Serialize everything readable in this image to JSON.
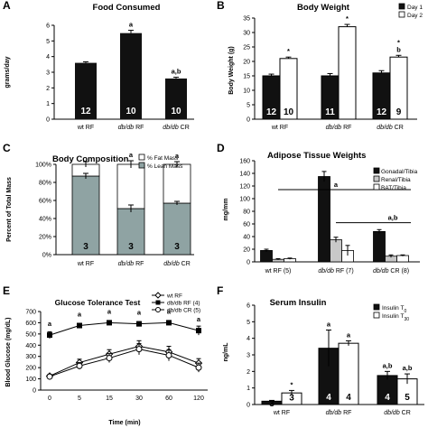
{
  "colors": {
    "black": "#111111",
    "white": "#ffffff",
    "gray": "#8fa3a3",
    "light_gray": "#c8c8c8"
  },
  "chart_data": [
    {
      "id": "A",
      "panel_label": "A",
      "type": "bar",
      "title": "Food Consumed",
      "ylabel": "grams/day",
      "ylim": [
        0,
        6
      ],
      "yticks": [
        "0",
        "1",
        "2",
        "3",
        "4",
        "5",
        "6"
      ],
      "categories": [
        "wt RF",
        "db/db RF",
        "db/db CR"
      ],
      "values": [
        3.6,
        5.5,
        2.6
      ],
      "errors": [
        0.07,
        0.18,
        0.08
      ],
      "n_labels": [
        "12",
        "10",
        "10"
      ],
      "annotations": [
        "",
        "a",
        "a,b"
      ]
    },
    {
      "id": "B",
      "panel_label": "B",
      "type": "bar",
      "title": "Body Weight",
      "ylabel": "Body Weight (g)",
      "ylim": [
        0,
        35
      ],
      "yticks": [
        "0",
        "5",
        "10",
        "15",
        "20",
        "25",
        "30",
        "35"
      ],
      "categories": [
        "wt RF",
        "db/db RF",
        "db/db CR"
      ],
      "series": [
        {
          "name": "Day 1",
          "values": [
            15,
            15,
            16
          ],
          "errors": [
            0.6,
            0.8,
            0.8
          ],
          "n_labels": [
            "12",
            "11",
            "12"
          ],
          "annotations": [
            "",
            "",
            ""
          ]
        },
        {
          "name": "Day 2",
          "values": [
            21,
            32,
            21.5
          ],
          "errors": [
            0.5,
            0.8,
            0.6
          ],
          "n_labels": [
            "10",
            "",
            "9"
          ],
          "annotations": [
            "*",
            "*",
            "*\nb"
          ]
        }
      ],
      "legend": "top-right"
    },
    {
      "id": "C",
      "panel_label": "C",
      "type": "bar",
      "title": "Body Composition",
      "ylabel": "Percent of Total Mass",
      "ylim": [
        0,
        100
      ],
      "yticks": [
        "0%",
        "20%",
        "40%",
        "60%",
        "80%",
        "100%"
      ],
      "categories": [
        "wt RF",
        "db/db RF",
        "db/db CR"
      ],
      "stacked": true,
      "series": [
        {
          "name": "% Lean Mass",
          "values": [
            87,
            51,
            57
          ],
          "errors": [
            3,
            4,
            2
          ]
        },
        {
          "name": "% Fat Mass",
          "values": [
            13,
            49,
            43
          ],
          "errors": [
            3,
            4,
            3
          ]
        }
      ],
      "n_labels": [
        "3",
        "3",
        "3"
      ],
      "annotations": [
        "",
        "a",
        "a"
      ],
      "legend": "top"
    },
    {
      "id": "D",
      "panel_label": "D",
      "type": "bar",
      "title": "Adipose Tissue Weights",
      "ylabel": "mg/mm",
      "ylim": [
        0,
        160
      ],
      "yticks": [
        "0",
        "20",
        "40",
        "60",
        "80",
        "100",
        "120",
        "140",
        "160"
      ],
      "categories": [
        "wt RF (5)",
        "db/db RF (7)",
        "db/db CR (8)"
      ],
      "series": [
        {
          "name": "Gonadal/Tibia",
          "values": [
            18,
            135,
            48
          ],
          "errors": [
            2,
            8,
            3
          ]
        },
        {
          "name": "Renal/Tibia",
          "values": [
            4,
            35,
            9
          ],
          "errors": [
            1,
            4,
            2
          ]
        },
        {
          "name": "BAT/Tibia",
          "values": [
            5,
            18,
            10
          ],
          "errors": [
            1,
            8,
            1
          ]
        }
      ],
      "annotations": [
        "a",
        "a,b"
      ],
      "legend": "top-right"
    },
    {
      "id": "E",
      "panel_label": "E",
      "type": "line",
      "title": "Glucose Tolerance Test",
      "xlabel": "Time (min)",
      "ylabel": "Blood Glucose (mg/dL)",
      "ylim": [
        0,
        700
      ],
      "yticks": [
        "0",
        "100",
        "200",
        "300",
        "400",
        "500",
        "600",
        "700"
      ],
      "x": [
        "0",
        "5",
        "15",
        "30",
        "60",
        "120"
      ],
      "series": [
        {
          "name": "wt RF",
          "marker": "diamond",
          "values": [
            125,
            245,
            320,
            390,
            340,
            240
          ],
          "errors": [
            15,
            30,
            40,
            50,
            50,
            40
          ]
        },
        {
          "name": "db/db RF (4)",
          "marker": "square",
          "values": [
            490,
            575,
            600,
            590,
            600,
            530
          ],
          "errors": [
            30,
            20,
            20,
            20,
            20,
            40
          ]
        },
        {
          "name": "db/db CR (5)",
          "marker": "circle",
          "values": [
            120,
            215,
            285,
            365,
            310,
            200
          ],
          "errors": [
            15,
            30,
            40,
            50,
            50,
            40
          ]
        }
      ],
      "annotations": [
        "a",
        "a",
        "a",
        "a",
        "a",
        "a"
      ],
      "legend": "top-right"
    },
    {
      "id": "F",
      "panel_label": "F",
      "type": "bar",
      "title": "Serum Insulin",
      "ylabel": "ng/mL",
      "ylim": [
        0,
        6
      ],
      "yticks": [
        "0",
        "1",
        "2",
        "3",
        "4",
        "5",
        "6"
      ],
      "categories": [
        "wt RF",
        "db/db RF",
        "db/db CR"
      ],
      "series": [
        {
          "name": "Insulin T0",
          "values": [
            0.2,
            3.4,
            1.75
          ],
          "errors": [
            0.05,
            1.1,
            0.25
          ],
          "n_labels": [
            "3",
            "4",
            "4"
          ],
          "annotations": [
            "",
            "a",
            "a,b"
          ]
        },
        {
          "name": "Insulin T30",
          "values": [
            0.7,
            3.7,
            1.55
          ],
          "errors": [
            0.15,
            0.15,
            0.3
          ],
          "n_labels": [
            "3",
            "4",
            "5"
          ],
          "annotations": [
            "*",
            "a",
            "a,b"
          ]
        }
      ],
      "legend": "top-right"
    }
  ]
}
